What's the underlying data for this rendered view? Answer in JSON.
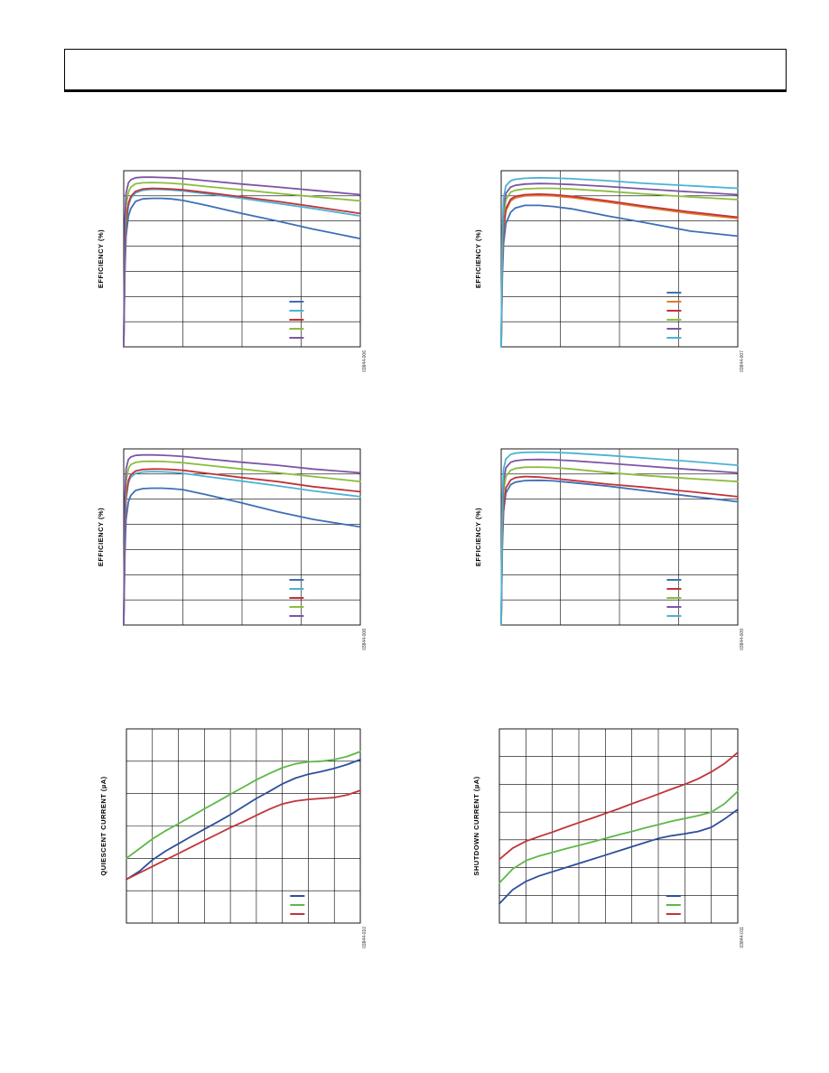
{
  "header": {
    "title": ""
  },
  "colors": {
    "blue": "#3f6fb5",
    "cyan": "#4bb3d3",
    "red": "#c0343a",
    "green": "#8bbd3e",
    "purple": "#7d55a6",
    "orange": "#e07b2d",
    "navy": "#2d4f9c",
    "bright_green": "#5db848",
    "grid": "#000000"
  },
  "chart_data": [
    {
      "id": "top-left",
      "type": "line",
      "ylabel": "EFFICIENCY (%)",
      "figure_id": "03844-006",
      "x_divisions": 4,
      "y_divisions": 7,
      "ylim": [
        0,
        7
      ],
      "xlim": [
        0,
        100
      ],
      "legend": {
        "placement": "bottom-right",
        "entries": 5
      },
      "series": [
        {
          "color": "#3f6fb5",
          "x": [
            0,
            0.5,
            1,
            2,
            3,
            5,
            8,
            12,
            16,
            20,
            25,
            35,
            50,
            65,
            80,
            100
          ],
          "y": [
            0,
            3.0,
            4.4,
            5.2,
            5.5,
            5.78,
            5.88,
            5.9,
            5.9,
            5.88,
            5.82,
            5.62,
            5.3,
            5.0,
            4.68,
            4.3
          ]
        },
        {
          "color": "#4bb3d3",
          "x": [
            0,
            0.5,
            1,
            2,
            3,
            5,
            8,
            12,
            16,
            20,
            25,
            35,
            50,
            65,
            80,
            100
          ],
          "y": [
            0,
            3.6,
            4.9,
            5.6,
            5.9,
            6.12,
            6.22,
            6.26,
            6.25,
            6.23,
            6.2,
            6.08,
            5.9,
            5.7,
            5.5,
            5.2
          ]
        },
        {
          "color": "#c0343a",
          "x": [
            0,
            0.5,
            1,
            2,
            3,
            5,
            8,
            12,
            16,
            20,
            25,
            35,
            50,
            65,
            80,
            100
          ],
          "y": [
            0,
            3.7,
            5.0,
            5.7,
            5.98,
            6.18,
            6.27,
            6.3,
            6.29,
            6.27,
            6.24,
            6.13,
            5.96,
            5.78,
            5.58,
            5.3
          ]
        },
        {
          "color": "#8bbd3e",
          "x": [
            0,
            0.5,
            1,
            2,
            3,
            5,
            8,
            12,
            16,
            20,
            25,
            35,
            50,
            65,
            80,
            100
          ],
          "y": [
            0,
            4.3,
            5.6,
            6.15,
            6.35,
            6.48,
            6.52,
            6.53,
            6.52,
            6.5,
            6.47,
            6.37,
            6.24,
            6.1,
            5.97,
            5.8
          ]
        },
        {
          "color": "#7d55a6",
          "x": [
            0,
            0.5,
            1,
            2,
            3,
            5,
            8,
            12,
            16,
            20,
            25,
            35,
            50,
            65,
            80,
            100
          ],
          "y": [
            0,
            5.0,
            6.1,
            6.52,
            6.64,
            6.72,
            6.74,
            6.74,
            6.73,
            6.72,
            6.69,
            6.6,
            6.47,
            6.35,
            6.22,
            6.05
          ]
        }
      ]
    },
    {
      "id": "top-right",
      "type": "line",
      "ylabel": "EFFICIENCY (%)",
      "figure_id": "03844-007",
      "x_divisions": 4,
      "y_divisions": 7,
      "ylim": [
        0,
        7
      ],
      "xlim": [
        0,
        100
      ],
      "legend": {
        "placement": "bottom-right",
        "entries": 6
      },
      "series": [
        {
          "color": "#3f6fb5",
          "x": [
            0,
            0.5,
            1,
            2,
            4,
            6,
            10,
            16,
            22,
            30,
            45,
            60,
            80,
            100
          ],
          "y": [
            0,
            2.8,
            4.1,
            4.9,
            5.35,
            5.52,
            5.62,
            5.62,
            5.58,
            5.48,
            5.2,
            4.95,
            4.6,
            4.4
          ]
        },
        {
          "color": "#e07b2d",
          "x": [
            0,
            0.5,
            1,
            2,
            4,
            6,
            10,
            16,
            22,
            30,
            45,
            60,
            80,
            100
          ],
          "y": [
            0,
            3.3,
            4.6,
            5.4,
            5.8,
            5.92,
            6.0,
            6.02,
            6.0,
            5.93,
            5.75,
            5.55,
            5.3,
            5.1
          ]
        },
        {
          "color": "#c0343a",
          "x": [
            0,
            0.5,
            1,
            2,
            4,
            6,
            10,
            16,
            22,
            30,
            45,
            60,
            80,
            100
          ],
          "y": [
            0,
            3.4,
            4.7,
            5.5,
            5.87,
            5.98,
            6.05,
            6.07,
            6.05,
            5.98,
            5.8,
            5.6,
            5.36,
            5.15
          ]
        },
        {
          "color": "#8bbd3e",
          "x": [
            0,
            0.5,
            1,
            2,
            4,
            6,
            10,
            16,
            22,
            30,
            45,
            60,
            80,
            100
          ],
          "y": [
            0,
            3.9,
            5.2,
            5.85,
            6.15,
            6.22,
            6.28,
            6.3,
            6.3,
            6.27,
            6.18,
            6.08,
            5.96,
            5.85
          ]
        },
        {
          "color": "#7d55a6",
          "x": [
            0,
            0.5,
            1,
            2,
            4,
            6,
            10,
            16,
            22,
            30,
            45,
            60,
            80,
            100
          ],
          "y": [
            0,
            4.2,
            5.5,
            6.1,
            6.35,
            6.42,
            6.47,
            6.49,
            6.48,
            6.45,
            6.37,
            6.28,
            6.16,
            6.05
          ]
        },
        {
          "color": "#4bb3d3",
          "x": [
            0,
            0.5,
            1,
            2,
            4,
            6,
            10,
            16,
            22,
            30,
            45,
            60,
            80,
            100
          ],
          "y": [
            0,
            4.6,
            5.9,
            6.4,
            6.6,
            6.66,
            6.7,
            6.72,
            6.71,
            6.68,
            6.6,
            6.5,
            6.4,
            6.3
          ]
        }
      ]
    },
    {
      "id": "middle-left",
      "type": "line",
      "ylabel": "EFFICIENCY (%)",
      "figure_id": "03844-008",
      "x_divisions": 4,
      "y_divisions": 7,
      "ylim": [
        0,
        7
      ],
      "xlim": [
        0,
        100
      ],
      "legend": {
        "placement": "bottom-right",
        "entries": 5
      },
      "series": [
        {
          "color": "#3f6fb5",
          "x": [
            0,
            0.5,
            1,
            2,
            3,
            5,
            8,
            12,
            16,
            20,
            25,
            35,
            50,
            65,
            80,
            100
          ],
          "y": [
            0,
            2.8,
            4.2,
            4.9,
            5.15,
            5.35,
            5.42,
            5.44,
            5.44,
            5.42,
            5.38,
            5.18,
            4.85,
            4.5,
            4.2,
            3.9
          ]
        },
        {
          "color": "#4bb3d3",
          "x": [
            0,
            0.5,
            1,
            2,
            3,
            5,
            8,
            12,
            16,
            20,
            25,
            35,
            50,
            65,
            80,
            100
          ],
          "y": [
            0,
            3.6,
            5.0,
            5.65,
            5.88,
            6.02,
            6.08,
            6.1,
            6.09,
            6.07,
            6.03,
            5.9,
            5.72,
            5.53,
            5.33,
            5.1
          ]
        },
        {
          "color": "#c0343a",
          "x": [
            0,
            0.5,
            1,
            2,
            3,
            5,
            8,
            12,
            16,
            20,
            25,
            35,
            50,
            65,
            80,
            100
          ],
          "y": [
            0,
            3.7,
            5.1,
            5.75,
            5.97,
            6.12,
            6.18,
            6.2,
            6.2,
            6.18,
            6.15,
            6.03,
            5.86,
            5.7,
            5.5,
            5.3
          ]
        },
        {
          "color": "#8bbd3e",
          "x": [
            0,
            0.5,
            1,
            2,
            3,
            5,
            8,
            12,
            16,
            20,
            25,
            35,
            50,
            65,
            80,
            100
          ],
          "y": [
            0,
            4.3,
            5.7,
            6.22,
            6.38,
            6.46,
            6.5,
            6.51,
            6.5,
            6.48,
            6.45,
            6.35,
            6.2,
            6.05,
            5.9,
            5.7
          ]
        },
        {
          "color": "#7d55a6",
          "x": [
            0,
            0.5,
            1,
            2,
            3,
            5,
            8,
            12,
            16,
            20,
            25,
            35,
            50,
            65,
            80,
            100
          ],
          "y": [
            0,
            5.0,
            6.2,
            6.58,
            6.68,
            6.74,
            6.76,
            6.76,
            6.75,
            6.73,
            6.7,
            6.6,
            6.47,
            6.35,
            6.2,
            6.05
          ]
        }
      ]
    },
    {
      "id": "middle-right",
      "type": "line",
      "ylabel": "EFFICIENCY (%)",
      "figure_id": "03844-009",
      "x_divisions": 4,
      "y_divisions": 7,
      "ylim": [
        0,
        7
      ],
      "xlim": [
        0,
        100
      ],
      "legend": {
        "placement": "bottom-right",
        "entries": 5
      },
      "series": [
        {
          "color": "#3f6fb5",
          "x": [
            0,
            0.5,
            1,
            2,
            4,
            6,
            10,
            16,
            22,
            30,
            45,
            60,
            80,
            100
          ],
          "y": [
            0,
            3.2,
            4.5,
            5.25,
            5.58,
            5.68,
            5.74,
            5.75,
            5.73,
            5.66,
            5.52,
            5.35,
            5.12,
            4.9
          ]
        },
        {
          "color": "#c0343a",
          "x": [
            0,
            0.5,
            1,
            2,
            4,
            6,
            10,
            16,
            22,
            30,
            45,
            60,
            80,
            100
          ],
          "y": [
            0,
            3.4,
            4.7,
            5.45,
            5.76,
            5.86,
            5.9,
            5.88,
            5.83,
            5.75,
            5.6,
            5.48,
            5.3,
            5.1
          ]
        },
        {
          "color": "#8bbd3e",
          "x": [
            0,
            0.5,
            1,
            2,
            4,
            6,
            10,
            16,
            22,
            30,
            45,
            60,
            80,
            100
          ],
          "y": [
            0,
            4.0,
            5.3,
            5.9,
            6.15,
            6.22,
            6.27,
            6.28,
            6.26,
            6.2,
            6.06,
            5.95,
            5.82,
            5.7
          ]
        },
        {
          "color": "#7d55a6",
          "x": [
            0,
            0.5,
            1,
            2,
            4,
            6,
            10,
            16,
            22,
            30,
            45,
            60,
            80,
            100
          ],
          "y": [
            0,
            4.4,
            5.7,
            6.25,
            6.47,
            6.53,
            6.57,
            6.58,
            6.57,
            6.53,
            6.43,
            6.32,
            6.18,
            6.05
          ]
        },
        {
          "color": "#4bb3d3",
          "x": [
            0,
            0.5,
            1,
            2,
            4,
            6,
            10,
            16,
            22,
            30,
            45,
            60,
            80,
            100
          ],
          "y": [
            0,
            5.0,
            6.2,
            6.6,
            6.78,
            6.83,
            6.86,
            6.87,
            6.86,
            6.83,
            6.74,
            6.64,
            6.5,
            6.35
          ]
        }
      ]
    },
    {
      "id": "bottom-left",
      "type": "line",
      "ylabel": "QUIESCENT CURRENT (µA)",
      "figure_id": "03844-010",
      "x_divisions": 9,
      "y_divisions": 6,
      "ylim": [
        0,
        6
      ],
      "xlim": [
        0,
        9
      ],
      "legend": {
        "placement": "bottom-right",
        "entries": 3
      },
      "series": [
        {
          "color": "#2d4f9c",
          "x": [
            0,
            0.5,
            1,
            1.5,
            2,
            2.5,
            3,
            3.5,
            4,
            4.5,
            5,
            5.5,
            6,
            6.5,
            7,
            7.5,
            8,
            8.5,
            9
          ],
          "y": [
            1.35,
            1.6,
            1.95,
            2.22,
            2.45,
            2.68,
            2.9,
            3.12,
            3.35,
            3.6,
            3.85,
            4.07,
            4.3,
            4.48,
            4.6,
            4.68,
            4.78,
            4.9,
            5.05
          ]
        },
        {
          "color": "#5db848",
          "x": [
            0,
            0.5,
            1,
            1.5,
            2,
            2.5,
            3,
            3.5,
            4,
            4.5,
            5,
            5.5,
            6,
            6.5,
            7,
            7.5,
            8,
            8.5,
            9
          ],
          "y": [
            2.0,
            2.3,
            2.6,
            2.85,
            3.07,
            3.3,
            3.53,
            3.75,
            3.98,
            4.2,
            4.43,
            4.62,
            4.8,
            4.92,
            4.98,
            5.0,
            5.05,
            5.15,
            5.3
          ]
        },
        {
          "color": "#c0343a",
          "x": [
            0,
            0.5,
            1,
            1.5,
            2,
            2.5,
            3,
            3.5,
            4,
            4.5,
            5,
            5.5,
            6,
            6.5,
            7,
            7.5,
            8,
            8.5,
            9
          ],
          "y": [
            1.35,
            1.55,
            1.75,
            1.95,
            2.15,
            2.35,
            2.55,
            2.75,
            2.95,
            3.13,
            3.33,
            3.52,
            3.68,
            3.77,
            3.82,
            3.85,
            3.88,
            3.96,
            4.1
          ]
        }
      ]
    },
    {
      "id": "bottom-right",
      "type": "line",
      "ylabel": "SHUTDOWN CURRENT (µA)",
      "figure_id": "03844-011",
      "x_divisions": 9,
      "y_divisions": 7,
      "ylim": [
        0,
        7
      ],
      "xlim": [
        0,
        9
      ],
      "legend": {
        "placement": "bottom-right",
        "entries": 3
      },
      "series": [
        {
          "color": "#2d4f9c",
          "x": [
            0,
            0.5,
            1,
            1.5,
            2,
            2.5,
            3,
            3.5,
            4,
            4.5,
            5,
            5.5,
            6,
            6.5,
            7,
            7.5,
            8,
            8.5,
            9
          ],
          "y": [
            0.7,
            1.2,
            1.5,
            1.7,
            1.85,
            2.0,
            2.15,
            2.3,
            2.45,
            2.6,
            2.75,
            2.9,
            3.05,
            3.15,
            3.22,
            3.3,
            3.45,
            3.75,
            4.1
          ]
        },
        {
          "color": "#5db848",
          "x": [
            0,
            0.5,
            1,
            1.5,
            2,
            2.5,
            3,
            3.5,
            4,
            4.5,
            5,
            5.5,
            6,
            6.5,
            7,
            7.5,
            8,
            8.5,
            9
          ],
          "y": [
            1.45,
            1.95,
            2.25,
            2.42,
            2.55,
            2.68,
            2.8,
            2.92,
            3.05,
            3.18,
            3.3,
            3.43,
            3.55,
            3.67,
            3.77,
            3.87,
            4.0,
            4.3,
            4.75
          ]
        },
        {
          "color": "#c0343a",
          "x": [
            0,
            0.5,
            1,
            1.5,
            2,
            2.5,
            3,
            3.5,
            4,
            4.5,
            5,
            5.5,
            6,
            6.5,
            7,
            7.5,
            8,
            8.5,
            9
          ],
          "y": [
            2.3,
            2.7,
            2.95,
            3.12,
            3.28,
            3.45,
            3.62,
            3.78,
            3.95,
            4.12,
            4.3,
            4.47,
            4.65,
            4.83,
            5.0,
            5.2,
            5.45,
            5.75,
            6.15
          ]
        }
      ]
    }
  ]
}
